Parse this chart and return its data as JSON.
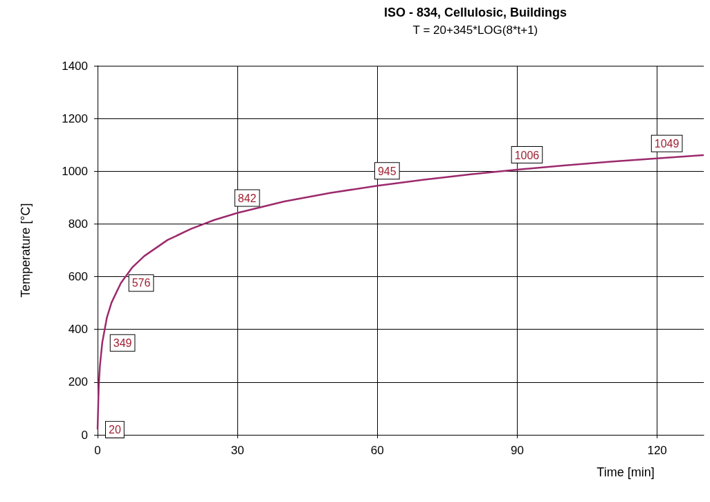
{
  "chart_data": {
    "type": "line",
    "title": "ISO - 834, Cellulosic, Buildings",
    "subtitle": "T = 20+345*LOG(8*t+1)",
    "xlabel": "Time [min]",
    "ylabel": "Temperature [°C]",
    "x": [
      0,
      0.25,
      0.5,
      1,
      2,
      3,
      5,
      7.5,
      10,
      15,
      20,
      25,
      30,
      40,
      50,
      60,
      70,
      80,
      90,
      100,
      110,
      120,
      130
    ],
    "series": [
      {
        "color": "#9c2a6c",
        "values": [
          20,
          185,
          261,
          349,
          445,
          502,
          576,
          636,
          678,
          739,
          781,
          815,
          842,
          885,
          918,
          945,
          968,
          988,
          1006,
          1022,
          1036,
          1049,
          1061
        ],
        "value_labels": [
          "20",
          null,
          null,
          "349",
          null,
          null,
          "576",
          null,
          null,
          null,
          null,
          null,
          "842",
          null,
          null,
          "945",
          null,
          null,
          "1006",
          null,
          null,
          "1049",
          null
        ]
      }
    ],
    "xlim": [
      0,
      130
    ],
    "xticks": [
      0,
      30,
      60,
      90,
      120
    ],
    "ylim": [
      0,
      1400
    ],
    "yticks": [
      0,
      200,
      400,
      600,
      800,
      1000,
      1200,
      1400
    ],
    "grid": true,
    "marker": "none",
    "line_style": "solid"
  }
}
